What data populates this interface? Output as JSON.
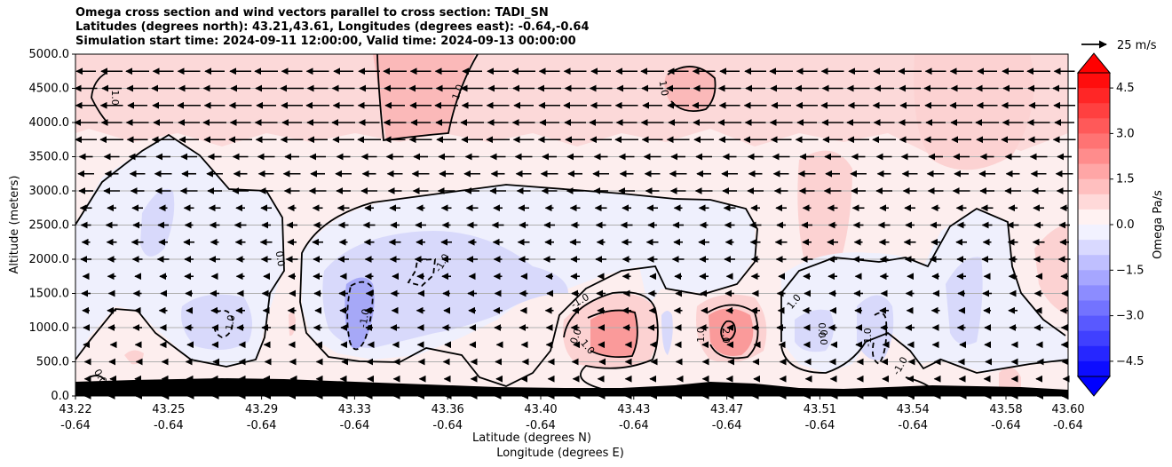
{
  "chart_data": {
    "type": "contour",
    "title_lines": [
      "Omega cross section and wind vectors parallel to cross section: TADI_SN",
      "Latitudes (degrees north): 43.21,43.61, Longitudes (degrees east): -0.64,-0.64",
      "Simulation start time: 2024-09-11 12:00:00, Valid time: 2024-09-13 00:00:00"
    ],
    "xlabel_lines": [
      "Latitude (degrees N)",
      "Longitude (degrees E)"
    ],
    "ylabel": "Altitude (meters)",
    "x_tick_lat": [
      "43.22",
      "43.25",
      "43.29",
      "43.33",
      "43.36",
      "43.40",
      "43.43",
      "43.47",
      "43.51",
      "43.54",
      "43.58",
      "43.60"
    ],
    "x_tick_lon": [
      "-0.64",
      "-0.64",
      "-0.64",
      "-0.64",
      "-0.64",
      "-0.64",
      "-0.64",
      "-0.64",
      "-0.64",
      "-0.64",
      "-0.64",
      "-0.64"
    ],
    "y_ticks": [
      "0.0",
      "500.0",
      "1000.0",
      "1500.0",
      "2000.0",
      "2500.0",
      "3000.0",
      "3500.0",
      "4000.0",
      "4500.0",
      "5000.0"
    ],
    "ylim": [
      0,
      5000
    ],
    "grid": "horizontal",
    "colorbar": {
      "label": "Omega Pa/s",
      "ticks": [
        "4.5",
        "3.0",
        "1.5",
        "0.0",
        "−1.5",
        "−3.0",
        "−4.5"
      ],
      "range": [
        -5,
        5
      ],
      "extend": "both",
      "colormap": "bwr"
    },
    "quiver_key": {
      "label": "25 m/s",
      "value": 25
    },
    "contour_labels": [
      "1.0",
      "1.0",
      "1.0",
      "0.0",
      "1.0",
      "-1.0",
      "-1.0",
      "-1.0",
      "0.0",
      "1.0",
      "1.0",
      "2.0",
      "1.0",
      "0.0",
      "-1.0",
      "-1.0",
      "0.0",
      "0.0"
    ],
    "wind_direction": "northerly (vectors point toward decreasing latitude)"
  },
  "colors": {
    "positive_light": "#fdebeb",
    "positive_mid": "#fcd2d2",
    "positive_strong": "#fa9a9a",
    "negative_light": "#eff0fd",
    "negative_mid": "#d8d9fb",
    "negative_strong": "#a6a8f7",
    "terrain": "#000000"
  }
}
